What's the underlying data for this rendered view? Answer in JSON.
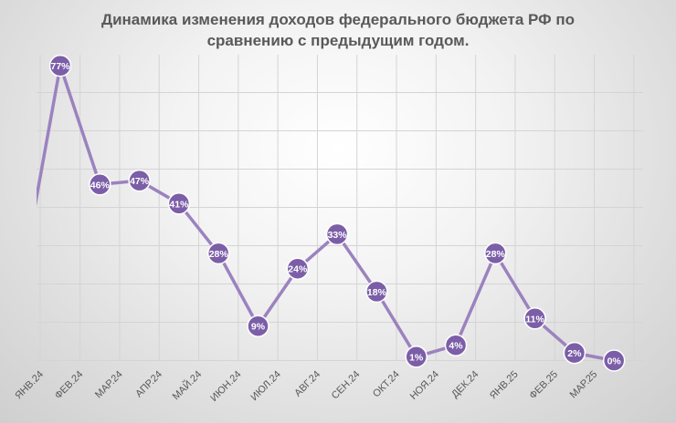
{
  "chart_data": {
    "type": "line",
    "title_lines": [
      "Динамика изменения доходов федерального бюджета РФ по",
      "сравнению с предыдущим годом."
    ],
    "categories": [
      "ЯНВ.24",
      "ФЕВ.24",
      "МАР.24",
      "АПР.24",
      "МАЙ.24",
      "ИЮН.24",
      "ИЮЛ.24",
      "АВГ.24",
      "СЕН.24",
      "ОКТ.24",
      "НОЯ.24",
      "ДЕК.24",
      "ЯНВ.25",
      "ФЕВ.25",
      "МАР.25"
    ],
    "values": [
      77,
      46,
      47,
      41,
      28,
      9,
      24,
      33,
      18,
      1,
      4,
      28,
      11,
      2,
      0
    ],
    "data_labels": [
      "77%",
      "46%",
      "47%",
      "41%",
      "28%",
      "9%",
      "24%",
      "33%",
      "18%",
      "1%",
      "4%",
      "28%",
      "11%",
      "2%",
      "0%"
    ],
    "line_enters_from_left_at": 40,
    "ylim": [
      0,
      80
    ],
    "y_gridline_step": 10,
    "grid": {
      "horizontal": true,
      "vertical": true
    },
    "legend": "none",
    "xlabel": "",
    "ylabel": "",
    "colors": {
      "line": "#9b82bf",
      "marker_fill": "#7b5ea7",
      "marker_stroke": "#ffffff",
      "label_text": "#ffffff",
      "grid": "#d4d4d4",
      "axis_text": "#595959"
    }
  }
}
